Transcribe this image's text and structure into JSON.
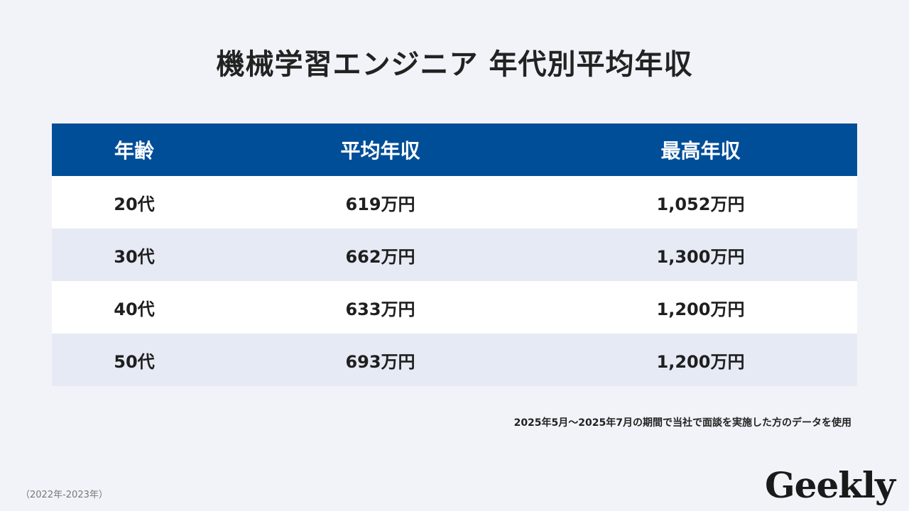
{
  "title": "機械学習エンジニア 年代別平均年収",
  "table": {
    "headers": {
      "age": "年齢",
      "average": "平均年収",
      "max": "最高年収"
    },
    "rows": [
      {
        "age": "20代",
        "average": "619万円",
        "max": "1,052万円"
      },
      {
        "age": "30代",
        "average": "662万円",
        "max": "1,300万円"
      },
      {
        "age": "40代",
        "average": "633万円",
        "max": "1,200万円"
      },
      {
        "age": "50代",
        "average": "693万円",
        "max": "1,200万円"
      }
    ]
  },
  "note": "2025年5月〜2025年7月の期間で当社で面談を実施した方のデータを使用",
  "period": "（2022年-2023年）",
  "logo": "Geekly",
  "colors": {
    "header_bg": "#004e98",
    "row_alt_bg": "#e5eaf4",
    "page_bg": "#f1f3f8"
  },
  "chart_data": {
    "type": "table",
    "title": "機械学習エンジニア 年代別平均年収",
    "columns": [
      "年齢",
      "平均年収",
      "最高年収"
    ],
    "categories": [
      "20代",
      "30代",
      "40代",
      "50代"
    ],
    "series": [
      {
        "name": "平均年収",
        "values": [
          619,
          662,
          633,
          693
        ]
      },
      {
        "name": "最高年収",
        "values": [
          1052,
          1300,
          1200,
          1200
        ]
      }
    ]
  }
}
